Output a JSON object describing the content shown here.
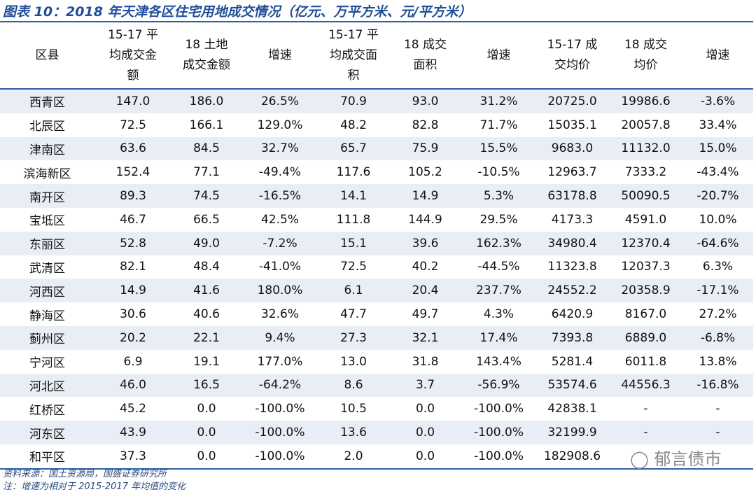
{
  "title": "图表 10：2018 年天津各区住宅用地成交情况（亿元、万平方米、元/平方米）",
  "table": {
    "header": [
      [
        "区县"
      ],
      [
        "15-17 平",
        "均成交金",
        "额"
      ],
      [
        "18 土地",
        "成交金额"
      ],
      [
        "增速"
      ],
      [
        "15-17 平",
        "均成交面",
        "积"
      ],
      [
        "18 成交",
        "面积"
      ],
      [
        "增速"
      ],
      [
        "15-17 成",
        "交均价"
      ],
      [
        "18 成交",
        "均价"
      ],
      [
        "增速"
      ]
    ],
    "rows": [
      [
        "西青区",
        "147.0",
        "186.0",
        "26.5%",
        "70.9",
        "93.0",
        "31.2%",
        "20725.0",
        "19986.6",
        "-3.6%"
      ],
      [
        "北辰区",
        "72.5",
        "166.1",
        "129.0%",
        "48.2",
        "82.8",
        "71.7%",
        "15035.1",
        "20057.8",
        "33.4%"
      ],
      [
        "津南区",
        "63.6",
        "84.5",
        "32.7%",
        "65.7",
        "75.9",
        "15.5%",
        "9683.0",
        "11132.0",
        "15.0%"
      ],
      [
        "滨海新区",
        "152.4",
        "77.1",
        "-49.4%",
        "117.6",
        "105.2",
        "-10.5%",
        "12963.7",
        "7333.2",
        "-43.4%"
      ],
      [
        "南开区",
        "89.3",
        "74.5",
        "-16.5%",
        "14.1",
        "14.9",
        "5.3%",
        "63178.8",
        "50090.5",
        "-20.7%"
      ],
      [
        "宝坻区",
        "46.7",
        "66.5",
        "42.5%",
        "111.8",
        "144.9",
        "29.5%",
        "4173.3",
        "4591.0",
        "10.0%"
      ],
      [
        "东丽区",
        "52.8",
        "49.0",
        "-7.2%",
        "15.1",
        "39.6",
        "162.3%",
        "34980.4",
        "12370.4",
        "-64.6%"
      ],
      [
        "武清区",
        "82.1",
        "48.4",
        "-41.0%",
        "72.5",
        "40.2",
        "-44.5%",
        "11323.8",
        "12037.3",
        "6.3%"
      ],
      [
        "河西区",
        "14.9",
        "41.6",
        "180.0%",
        "6.1",
        "20.4",
        "237.7%",
        "24552.2",
        "20358.9",
        "-17.1%"
      ],
      [
        "静海区",
        "30.6",
        "40.6",
        "32.6%",
        "47.7",
        "49.7",
        "4.3%",
        "6420.9",
        "8167.0",
        "27.2%"
      ],
      [
        "蓟州区",
        "20.2",
        "22.1",
        "9.4%",
        "27.3",
        "32.1",
        "17.4%",
        "7393.8",
        "6889.0",
        "-6.8%"
      ],
      [
        "宁河区",
        "6.9",
        "19.1",
        "177.0%",
        "13.0",
        "31.8",
        "143.4%",
        "5281.4",
        "6011.8",
        "13.8%"
      ],
      [
        "河北区",
        "46.0",
        "16.5",
        "-64.2%",
        "8.6",
        "3.7",
        "-56.9%",
        "53574.6",
        "44556.3",
        "-16.8%"
      ],
      [
        "红桥区",
        "45.2",
        "0.0",
        "-100.0%",
        "10.5",
        "0.0",
        "-100.0%",
        "42838.1",
        "-",
        "-"
      ],
      [
        "河东区",
        "43.9",
        "0.0",
        "-100.0%",
        "13.6",
        "0.0",
        "-100.0%",
        "32199.9",
        "-",
        "-"
      ],
      [
        "和平区",
        "37.3",
        "0.0",
        "-100.0%",
        "2.0",
        "0.0",
        "-100.0%",
        "182908.6",
        "",
        ""
      ]
    ]
  },
  "footnotes": [
    "资料来源：国土资源局，国盛证券研究所",
    "注：增速为相对于 2015-2017 年均值的变化"
  ],
  "watermark": "郁言债市"
}
